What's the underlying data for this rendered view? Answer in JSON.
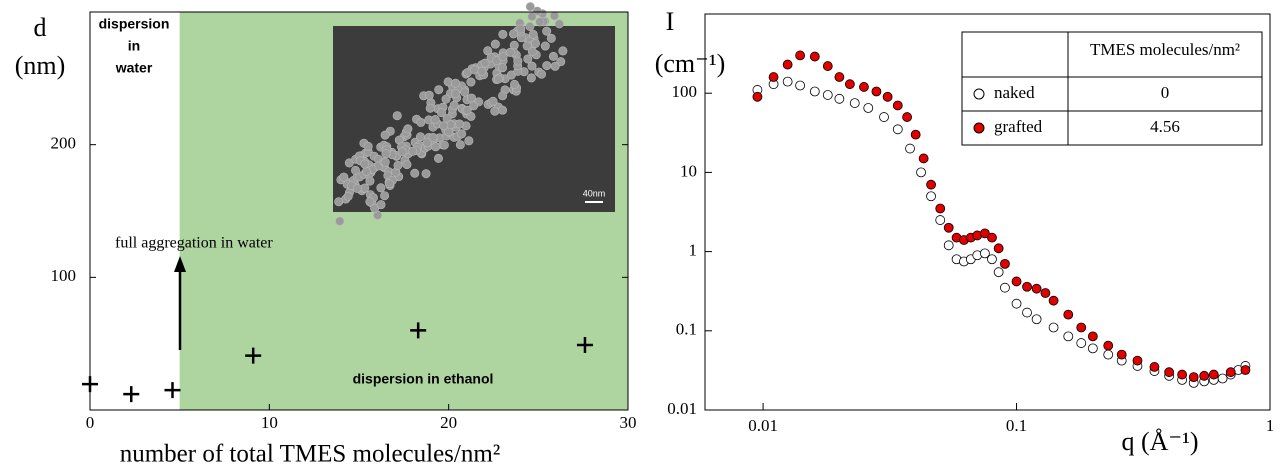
{
  "chart_data": [
    {
      "type": "scatter",
      "marker": "plus",
      "color": "#000000",
      "ylabel": [
        "d",
        "(nm)"
      ],
      "xlabel": "number of total TMES molecules/nm²",
      "x": [
        0,
        2.3,
        4.6,
        9.1,
        18.3,
        27.6
      ],
      "y": [
        19.5,
        12,
        15,
        41,
        60,
        49
      ],
      "xlim": [
        0,
        30
      ],
      "ylim": [
        0,
        300
      ],
      "xticks": [
        0,
        10,
        20,
        30
      ],
      "yticks": [
        100,
        200
      ],
      "grid": false,
      "shaded_region": {
        "xlim": [
          5,
          30
        ],
        "color": "#aed4a0"
      },
      "annotations": {
        "water": [
          "dispersion",
          "in",
          "water"
        ],
        "aggregation": "full aggregation in water",
        "ethanol": "dispersion in ethanol"
      },
      "inset_scale_label": "40nm"
    },
    {
      "type": "scatter",
      "marker": "circle",
      "xscale": "log",
      "yscale": "log",
      "grid": false,
      "ylabel": "I",
      "ylabel_unit": "(cm⁻¹)",
      "xlabel": "q (Å⁻¹)",
      "xlim": [
        0.0059,
        1
      ],
      "ylim": [
        0.01,
        1000
      ],
      "xticks": [
        0.01,
        0.1,
        1
      ],
      "yticks": [
        0.01,
        0.1,
        1,
        10,
        100
      ],
      "legend_header": "TMES molecules/nm²",
      "series": [
        {
          "name": "naked",
          "density": 0,
          "color": "#ffffff",
          "edgecolor": "#000000",
          "x": [
            0.0095,
            0.011,
            0.0125,
            0.014,
            0.016,
            0.018,
            0.02,
            0.023,
            0.026,
            0.03,
            0.034,
            0.038,
            0.042,
            0.046,
            0.05,
            0.054,
            0.058,
            0.062,
            0.066,
            0.07,
            0.075,
            0.08,
            0.085,
            0.09,
            0.1,
            0.11,
            0.12,
            0.14,
            0.16,
            0.18,
            0.2,
            0.23,
            0.26,
            0.3,
            0.35,
            0.4,
            0.45,
            0.5,
            0.55,
            0.6,
            0.65,
            0.7,
            0.75,
            0.8
          ],
          "y": [
            110,
            130,
            140,
            125,
            105,
            95,
            85,
            75,
            65,
            50,
            35,
            20,
            10,
            5,
            2.5,
            1.2,
            0.8,
            0.75,
            0.8,
            0.9,
            0.95,
            0.8,
            0.55,
            0.35,
            0.22,
            0.17,
            0.14,
            0.11,
            0.085,
            0.07,
            0.06,
            0.05,
            0.042,
            0.036,
            0.031,
            0.027,
            0.024,
            0.022,
            0.023,
            0.024,
            0.025,
            0.028,
            0.032,
            0.036
          ]
        },
        {
          "name": "grafted",
          "density": 4.56,
          "color": "#e00000",
          "edgecolor": "#000000",
          "x": [
            0.0095,
            0.011,
            0.0125,
            0.014,
            0.016,
            0.018,
            0.02,
            0.022,
            0.025,
            0.028,
            0.031,
            0.034,
            0.037,
            0.04,
            0.043,
            0.046,
            0.05,
            0.054,
            0.058,
            0.062,
            0.066,
            0.07,
            0.075,
            0.08,
            0.085,
            0.09,
            0.1,
            0.11,
            0.12,
            0.13,
            0.14,
            0.16,
            0.18,
            0.2,
            0.23,
            0.26,
            0.3,
            0.35,
            0.4,
            0.45,
            0.5,
            0.55,
            0.6,
            0.7,
            0.8
          ],
          "y": [
            90,
            160,
            230,
            300,
            290,
            220,
            160,
            130,
            120,
            105,
            90,
            70,
            50,
            30,
            15,
            7,
            3.5,
            2.0,
            1.5,
            1.4,
            1.5,
            1.6,
            1.7,
            1.5,
            1.1,
            0.7,
            0.42,
            0.36,
            0.34,
            0.3,
            0.24,
            0.16,
            0.11,
            0.085,
            0.065,
            0.05,
            0.042,
            0.035,
            0.03,
            0.028,
            0.026,
            0.027,
            0.028,
            0.03,
            0.032
          ]
        }
      ]
    }
  ]
}
